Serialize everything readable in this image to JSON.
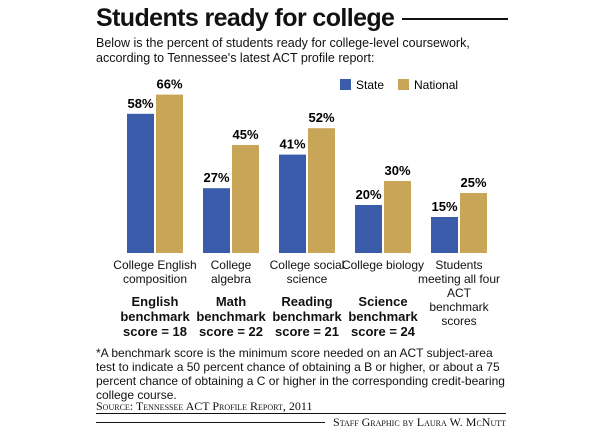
{
  "chart_data": {
    "type": "bar",
    "title": "Students ready for college",
    "subtitle": "Below is the percent of students ready for college-level coursework, according to Tennessee's latest ACT profile report:",
    "categories": [
      "College English composition",
      "College algebra",
      "College social science",
      "College biology",
      "Students meeting all four ACT benchmark scores"
    ],
    "benchmarks": [
      "English benchmark score = 18",
      "Math benchmark score = 22",
      "Reading benchmark score = 21",
      "Science benchmark score = 24",
      null
    ],
    "series": [
      {
        "name": "State",
        "color": "#3a5cab",
        "values": [
          58,
          27,
          41,
          20,
          15
        ],
        "value_labels": [
          "58%",
          "27%",
          "41%",
          "20%",
          "15%"
        ]
      },
      {
        "name": "National",
        "color": "#c9a557",
        "values": [
          66,
          45,
          52,
          30,
          25
        ],
        "value_labels": [
          "66%",
          "45%",
          "52%",
          "30%",
          "25%"
        ]
      }
    ],
    "footnote": "*A benchmark score is the minimum score needed on an ACT subject-area test to indicate a 50 percent chance of obtaining a B or higher, or about a 75 percent chance of obtaining a C or higher in the corresponding credit-bearing college course.",
    "source": "Source: Tennessee ACT Profile Report, 2011",
    "credit": "Staff Graphic by Laura W. McNutt"
  }
}
